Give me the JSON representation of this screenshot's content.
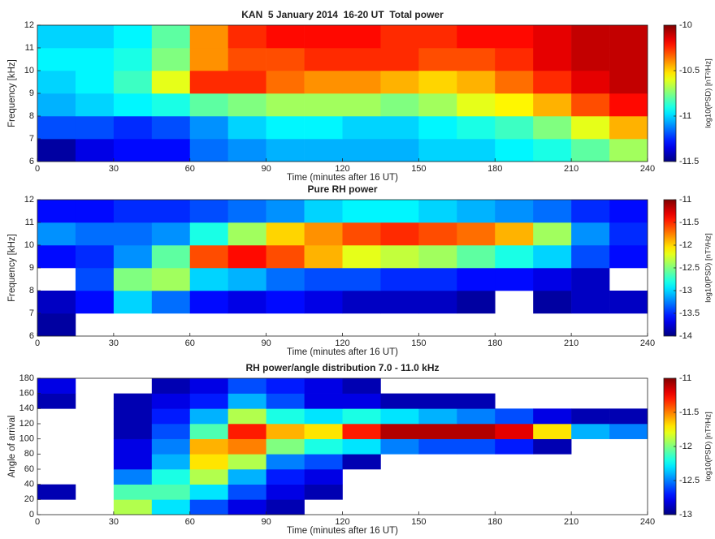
{
  "chart_data": [
    {
      "type": "heatmap",
      "title": "KAN  5 January 2014  16-20 UT  Total power",
      "xlabel": "Time (minutes after 16 UT)",
      "ylabel": "Frequency [kHz]",
      "colormap": "jet",
      "xlim": [
        0,
        240
      ],
      "xticks": [
        0,
        30,
        60,
        90,
        120,
        150,
        180,
        210,
        240
      ],
      "ylim": [
        6,
        12
      ],
      "yticks": [
        6,
        7,
        8,
        9,
        10,
        11,
        12
      ],
      "xbins": [
        0,
        15,
        30,
        45,
        60,
        75,
        90,
        105,
        120,
        135,
        150,
        165,
        180,
        195,
        210,
        225,
        240
      ],
      "ybins": [
        6,
        7,
        8,
        9,
        10,
        11,
        12
      ],
      "values": [
        [
          -11.45,
          -11.35,
          -11.3,
          -11.3,
          -11.15,
          -11.1,
          -11.05,
          -11.05,
          -11.05,
          -11.05,
          -11.0,
          -11.0,
          -10.95,
          -10.9,
          -10.8,
          -10.7
        ],
        [
          -11.2,
          -11.2,
          -11.25,
          -11.2,
          -11.1,
          -11.0,
          -10.95,
          -10.95,
          -11.0,
          -11.0,
          -10.95,
          -10.9,
          -10.85,
          -10.75,
          -10.6,
          -10.45
        ],
        [
          -11.05,
          -11.0,
          -10.95,
          -10.9,
          -10.8,
          -10.75,
          -10.7,
          -10.7,
          -10.7,
          -10.75,
          -10.7,
          -10.6,
          -10.55,
          -10.45,
          -10.3,
          -10.2
        ],
        [
          -11.0,
          -10.95,
          -10.85,
          -10.6,
          -10.25,
          -10.25,
          -10.35,
          -10.4,
          -10.4,
          -10.45,
          -10.5,
          -10.45,
          -10.35,
          -10.25,
          -10.15,
          -10.1
        ],
        [
          -10.95,
          -10.95,
          -10.9,
          -10.75,
          -10.4,
          -10.3,
          -10.3,
          -10.25,
          -10.25,
          -10.25,
          -10.3,
          -10.3,
          -10.25,
          -10.15,
          -10.1,
          -10.1
        ],
        [
          -11.0,
          -11.0,
          -10.95,
          -10.8,
          -10.4,
          -10.25,
          -10.2,
          -10.2,
          -10.2,
          -10.25,
          -10.25,
          -10.2,
          -10.2,
          -10.15,
          -10.1,
          -10.1
        ]
      ],
      "colorbar": {
        "label": "log10(PSD) [nT²/Hz]",
        "lim": [
          -11.5,
          -10
        ],
        "ticks": [
          -11.5,
          -11,
          -10.5,
          -10
        ]
      }
    },
    {
      "type": "heatmap",
      "title": "Pure RH power",
      "xlabel": "Time (minutes after 16 UT)",
      "ylabel": "Frequency [kHz]",
      "colormap": "jet",
      "xlim": [
        0,
        240
      ],
      "xticks": [
        0,
        30,
        60,
        90,
        120,
        150,
        180,
        210,
        240
      ],
      "ylim": [
        6,
        12
      ],
      "yticks": [
        6,
        7,
        8,
        9,
        10,
        11,
        12
      ],
      "xbins": [
        0,
        15,
        30,
        45,
        60,
        75,
        90,
        105,
        120,
        135,
        150,
        165,
        180,
        195,
        210,
        225,
        240
      ],
      "ybins": [
        6,
        7,
        8,
        9,
        10,
        11,
        12
      ],
      "values": [
        [
          -13.9,
          null,
          null,
          null,
          null,
          null,
          null,
          null,
          null,
          null,
          null,
          null,
          null,
          null,
          null,
          null
        ],
        [
          -13.8,
          -13.6,
          -13.0,
          -13.3,
          -13.6,
          -13.7,
          -13.6,
          -13.7,
          -13.8,
          -13.8,
          -13.8,
          -13.9,
          null,
          -13.9,
          -13.8,
          -13.8
        ],
        [
          null,
          -13.4,
          -12.5,
          -12.4,
          -13.0,
          -13.1,
          -13.3,
          -13.4,
          -13.4,
          -13.5,
          -13.5,
          -13.6,
          -13.6,
          -13.7,
          -13.8,
          null
        ],
        [
          -13.6,
          -13.5,
          -13.2,
          -12.6,
          -11.6,
          -11.4,
          -11.6,
          -11.9,
          -12.2,
          -12.3,
          -12.4,
          -12.6,
          -12.8,
          -13.0,
          -13.4,
          -13.6
        ],
        [
          -13.2,
          -13.3,
          -13.3,
          -13.2,
          -12.8,
          -12.4,
          -12.0,
          -11.8,
          -11.6,
          -11.5,
          -11.6,
          -11.7,
          -11.9,
          -12.4,
          -13.2,
          -13.5
        ],
        [
          -13.6,
          -13.6,
          -13.5,
          -13.5,
          -13.4,
          -13.3,
          -13.2,
          -13.0,
          -12.9,
          -12.9,
          -13.0,
          -13.1,
          -13.2,
          -13.3,
          -13.5,
          -13.6
        ]
      ],
      "colorbar": {
        "label": "log10(PSD) [nT²/Hz]",
        "lim": [
          -14,
          -11
        ],
        "ticks": [
          -14,
          -13.5,
          -13,
          -12.5,
          -12,
          -11.5,
          -11
        ]
      }
    },
    {
      "type": "heatmap",
      "title": "RH power/angle distribution 7.0 - 11.0 kHz",
      "xlabel": "Time (minutes after 16 UT)",
      "ylabel": "Angle of arrival",
      "colormap": "jet",
      "xlim": [
        0,
        240
      ],
      "xticks": [
        0,
        30,
        60,
        90,
        120,
        150,
        180,
        210,
        240
      ],
      "ylim": [
        0,
        180
      ],
      "yticks": [
        0,
        20,
        40,
        60,
        80,
        100,
        120,
        140,
        160,
        180
      ],
      "xbins": [
        0,
        15,
        30,
        45,
        60,
        75,
        90,
        105,
        120,
        135,
        150,
        165,
        180,
        195,
        210,
        225,
        240
      ],
      "ybins": [
        0,
        20,
        40,
        60,
        80,
        100,
        120,
        140,
        160,
        180
      ],
      "values": [
        [
          null,
          null,
          -11.9,
          -12.3,
          -12.6,
          -12.8,
          -12.9,
          null,
          null,
          null,
          null,
          null,
          null,
          null,
          null,
          null
        ],
        [
          -12.9,
          null,
          -12.1,
          -12.1,
          -12.3,
          -12.6,
          -12.8,
          -12.9,
          null,
          null,
          null,
          null,
          null,
          null,
          null,
          null
        ],
        [
          null,
          null,
          -12.5,
          -12.2,
          -11.9,
          -12.4,
          -12.7,
          -12.8,
          null,
          null,
          null,
          null,
          null,
          null,
          null,
          null
        ],
        [
          null,
          null,
          -12.8,
          -12.4,
          -11.7,
          -11.9,
          -12.5,
          -12.6,
          -12.9,
          null,
          null,
          null,
          null,
          null,
          null,
          null
        ],
        [
          null,
          null,
          -12.8,
          -12.5,
          -11.6,
          -11.5,
          -12.0,
          -12.2,
          -12.3,
          -12.5,
          -12.6,
          -12.6,
          -12.7,
          -12.9,
          null,
          null
        ],
        [
          null,
          null,
          -12.9,
          -12.6,
          -12.1,
          -11.3,
          -11.6,
          -11.7,
          -11.3,
          -11.1,
          -11.1,
          -11.1,
          -11.2,
          -11.7,
          -12.4,
          -12.5
        ],
        [
          null,
          null,
          -12.9,
          -12.7,
          -12.4,
          -11.9,
          -12.2,
          -12.3,
          -12.2,
          -12.3,
          -12.4,
          -12.5,
          -12.6,
          -12.8,
          -12.9,
          -12.9
        ],
        [
          -12.9,
          null,
          -12.9,
          -12.8,
          -12.7,
          -12.4,
          -12.6,
          -12.8,
          -12.8,
          -12.9,
          -12.9,
          -12.9,
          null,
          null,
          null,
          null
        ],
        [
          -12.8,
          null,
          null,
          -12.9,
          -12.8,
          -12.6,
          -12.7,
          -12.8,
          -12.9,
          null,
          null,
          null,
          null,
          null,
          null,
          null
        ]
      ],
      "colorbar": {
        "label": "log10(PSD) [nT²/Hz]",
        "lim": [
          -13,
          -11
        ],
        "ticks": [
          -13,
          -12.5,
          -12,
          -11.5,
          -11
        ]
      }
    }
  ]
}
